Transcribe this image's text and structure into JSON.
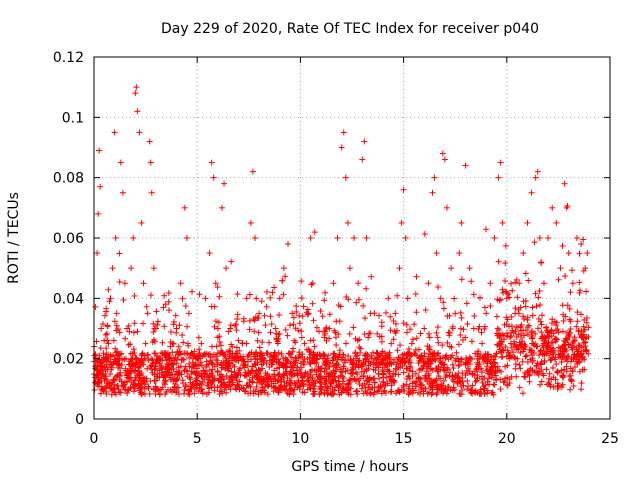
{
  "chart_data": {
    "type": "scatter",
    "title": "Day 229 of 2020, Rate Of TEC Index for receiver p040",
    "xlabel": "GPS time / hours",
    "ylabel": "ROTI / TECUs",
    "xlim": [
      0,
      25
    ],
    "ylim": [
      0,
      0.12
    ],
    "x_ticks": [
      0,
      5,
      10,
      15,
      20,
      25
    ],
    "y_ticks": [
      0,
      0.02,
      0.04,
      0.06,
      0.08,
      0.1,
      0.12
    ],
    "x_tick_labels": [
      "0",
      "5",
      "10",
      "15",
      "20",
      "25"
    ],
    "y_tick_labels": [
      "0",
      "0.02",
      "0.04",
      "0.06",
      "0.08",
      "0.1",
      "0.12"
    ],
    "grid": true,
    "marker": "+",
    "color": "#ff0000",
    "series": [
      {
        "name": "ROTI",
        "description_points": "dense scatter, baseline ~0.005-0.025 across 0-24 h with spikes",
        "points": [
          [
            0.05,
            0.012
          ],
          [
            0.1,
            0.02
          ],
          [
            0.15,
            0.055
          ],
          [
            0.2,
            0.068
          ],
          [
            0.25,
            0.089
          ],
          [
            0.3,
            0.077
          ],
          [
            0.35,
            0.03
          ],
          [
            0.4,
            0.015
          ],
          [
            0.5,
            0.01
          ],
          [
            0.6,
            0.018
          ],
          [
            0.7,
            0.025
          ],
          [
            0.8,
            0.04
          ],
          [
            0.9,
            0.05
          ],
          [
            1.0,
            0.095
          ],
          [
            1.05,
            0.06
          ],
          [
            1.1,
            0.035
          ],
          [
            1.2,
            0.02
          ],
          [
            1.3,
            0.085
          ],
          [
            1.4,
            0.075
          ],
          [
            1.5,
            0.045
          ],
          [
            1.6,
            0.03
          ],
          [
            1.7,
            0.015
          ],
          [
            1.8,
            0.05
          ],
          [
            1.9,
            0.06
          ],
          [
            2.0,
            0.108
          ],
          [
            2.05,
            0.11
          ],
          [
            2.1,
            0.102
          ],
          [
            2.2,
            0.095
          ],
          [
            2.3,
            0.065
          ],
          [
            2.4,
            0.045
          ],
          [
            2.5,
            0.025
          ],
          [
            2.6,
            0.035
          ],
          [
            2.7,
            0.092
          ],
          [
            2.75,
            0.085
          ],
          [
            2.8,
            0.075
          ],
          [
            2.9,
            0.05
          ],
          [
            3.0,
            0.03
          ],
          [
            3.2,
            0.02
          ],
          [
            3.4,
            0.012
          ],
          [
            3.6,
            0.015
          ],
          [
            3.8,
            0.025
          ],
          [
            4.0,
            0.03
          ],
          [
            4.2,
            0.045
          ],
          [
            4.4,
            0.07
          ],
          [
            4.5,
            0.06
          ],
          [
            4.6,
            0.035
          ],
          [
            4.8,
            0.02
          ],
          [
            5.0,
            0.015
          ],
          [
            5.2,
            0.025
          ],
          [
            5.4,
            0.04
          ],
          [
            5.6,
            0.055
          ],
          [
            5.7,
            0.085
          ],
          [
            5.8,
            0.08
          ],
          [
            5.9,
            0.045
          ],
          [
            6.0,
            0.03
          ],
          [
            6.2,
            0.07
          ],
          [
            6.3,
            0.078
          ],
          [
            6.4,
            0.05
          ],
          [
            6.6,
            0.03
          ],
          [
            6.8,
            0.02
          ],
          [
            7.0,
            0.015
          ],
          [
            7.2,
            0.025
          ],
          [
            7.4,
            0.04
          ],
          [
            7.6,
            0.065
          ],
          [
            7.7,
            0.082
          ],
          [
            7.8,
            0.06
          ],
          [
            8.0,
            0.035
          ],
          [
            8.2,
            0.02
          ],
          [
            8.4,
            0.012
          ],
          [
            8.6,
            0.018
          ],
          [
            8.8,
            0.03
          ],
          [
            9.0,
            0.04
          ],
          [
            9.2,
            0.05
          ],
          [
            9.4,
            0.058
          ],
          [
            9.6,
            0.035
          ],
          [
            9.8,
            0.02
          ],
          [
            10.0,
            0.015
          ],
          [
            10.2,
            0.025
          ],
          [
            10.4,
            0.035
          ],
          [
            10.5,
            0.06
          ],
          [
            10.6,
            0.045
          ],
          [
            10.8,
            0.02
          ],
          [
            11.0,
            0.012
          ],
          [
            11.2,
            0.018
          ],
          [
            11.4,
            0.03
          ],
          [
            11.6,
            0.045
          ],
          [
            11.8,
            0.06
          ],
          [
            12.0,
            0.09
          ],
          [
            12.1,
            0.095
          ],
          [
            12.2,
            0.08
          ],
          [
            12.3,
            0.065
          ],
          [
            12.4,
            0.05
          ],
          [
            12.6,
            0.06
          ],
          [
            12.8,
            0.045
          ],
          [
            13.0,
            0.086
          ],
          [
            13.1,
            0.092
          ],
          [
            13.2,
            0.06
          ],
          [
            13.4,
            0.035
          ],
          [
            13.6,
            0.02
          ],
          [
            13.8,
            0.015
          ],
          [
            14.0,
            0.012
          ],
          [
            14.2,
            0.018
          ],
          [
            14.4,
            0.025
          ],
          [
            14.6,
            0.035
          ],
          [
            14.8,
            0.05
          ],
          [
            14.9,
            0.065
          ],
          [
            15.0,
            0.076
          ],
          [
            15.1,
            0.06
          ],
          [
            15.2,
            0.04
          ],
          [
            15.4,
            0.025
          ],
          [
            15.6,
            0.015
          ],
          [
            15.8,
            0.02
          ],
          [
            16.0,
            0.03
          ],
          [
            16.2,
            0.045
          ],
          [
            16.4,
            0.075
          ],
          [
            16.5,
            0.08
          ],
          [
            16.6,
            0.055
          ],
          [
            16.8,
            0.04
          ],
          [
            16.9,
            0.088
          ],
          [
            17.0,
            0.086
          ],
          [
            17.1,
            0.07
          ],
          [
            17.3,
            0.05
          ],
          [
            17.5,
            0.035
          ],
          [
            17.7,
            0.055
          ],
          [
            17.8,
            0.065
          ],
          [
            18.0,
            0.084
          ],
          [
            18.2,
            0.05
          ],
          [
            18.4,
            0.03
          ],
          [
            18.6,
            0.02
          ],
          [
            18.8,
            0.025
          ],
          [
            19.0,
            0.035
          ],
          [
            19.2,
            0.045
          ],
          [
            19.4,
            0.06
          ],
          [
            19.6,
            0.08
          ],
          [
            19.7,
            0.085
          ],
          [
            19.8,
            0.065
          ],
          [
            20.0,
            0.04
          ],
          [
            20.2,
            0.025
          ],
          [
            20.4,
            0.035
          ],
          [
            20.6,
            0.045
          ],
          [
            20.8,
            0.055
          ],
          [
            21.0,
            0.065
          ],
          [
            21.2,
            0.075
          ],
          [
            21.4,
            0.08
          ],
          [
            21.5,
            0.082
          ],
          [
            21.6,
            0.06
          ],
          [
            21.8,
            0.045
          ],
          [
            22.0,
            0.06
          ],
          [
            22.2,
            0.07
          ],
          [
            22.4,
            0.065
          ],
          [
            22.6,
            0.05
          ],
          [
            22.8,
            0.078
          ],
          [
            22.9,
            0.07
          ],
          [
            23.0,
            0.055
          ],
          [
            23.2,
            0.045
          ],
          [
            23.4,
            0.06
          ],
          [
            23.6,
            0.058
          ],
          [
            23.8,
            0.05
          ],
          [
            23.9,
            0.055
          ]
        ]
      }
    ]
  }
}
